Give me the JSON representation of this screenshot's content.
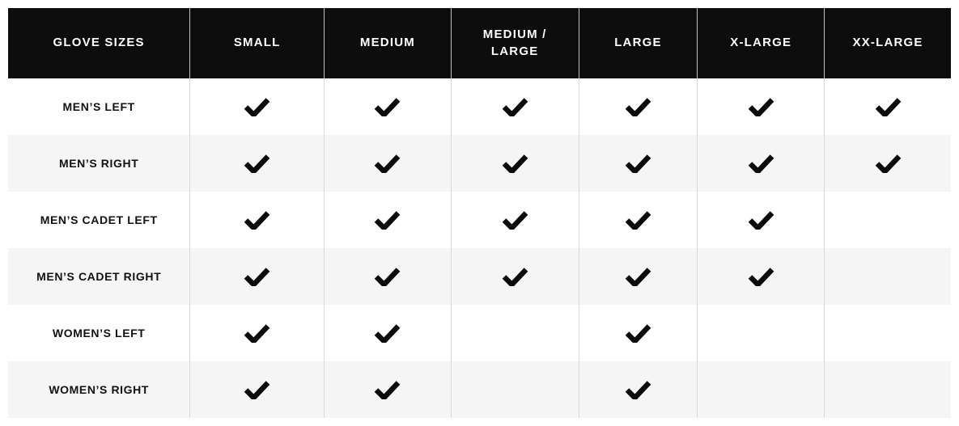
{
  "chart_data": {
    "type": "table",
    "title": "Glove Sizes",
    "columns": [
      "GLOVE SIZES",
      "SMALL",
      "MEDIUM",
      "MEDIUM / LARGE",
      "LARGE",
      "X-LARGE",
      "XX-LARGE"
    ],
    "rows": [
      {
        "label": "MEN’S LEFT",
        "checks": [
          true,
          true,
          true,
          true,
          true,
          true
        ]
      },
      {
        "label": "MEN’S RIGHT",
        "checks": [
          true,
          true,
          true,
          true,
          true,
          true
        ]
      },
      {
        "label": "MEN’S CADET LEFT",
        "checks": [
          true,
          true,
          true,
          true,
          true,
          false
        ]
      },
      {
        "label": "MEN’S CADET RIGHT",
        "checks": [
          true,
          true,
          true,
          true,
          true,
          false
        ]
      },
      {
        "label": "WOMEN’S LEFT",
        "checks": [
          true,
          true,
          false,
          true,
          false,
          false
        ]
      },
      {
        "label": "WOMEN’S RIGHT",
        "checks": [
          true,
          true,
          false,
          true,
          false,
          false
        ]
      }
    ],
    "check_symbol": "checkmark",
    "layout_hints": {
      "header_row": "black background, white uppercase text",
      "body_rows": "alternating white / light-gray, no horizontal borders, vertical dividers only"
    }
  },
  "colors": {
    "header_bg": "#0d0d0d",
    "header_text": "#ffffff",
    "row_bg": "#ffffff",
    "row_alt_bg": "#f5f5f5",
    "divider": "#d9d9d9",
    "label_text": "#111111",
    "check": "#0b0b0b"
  }
}
